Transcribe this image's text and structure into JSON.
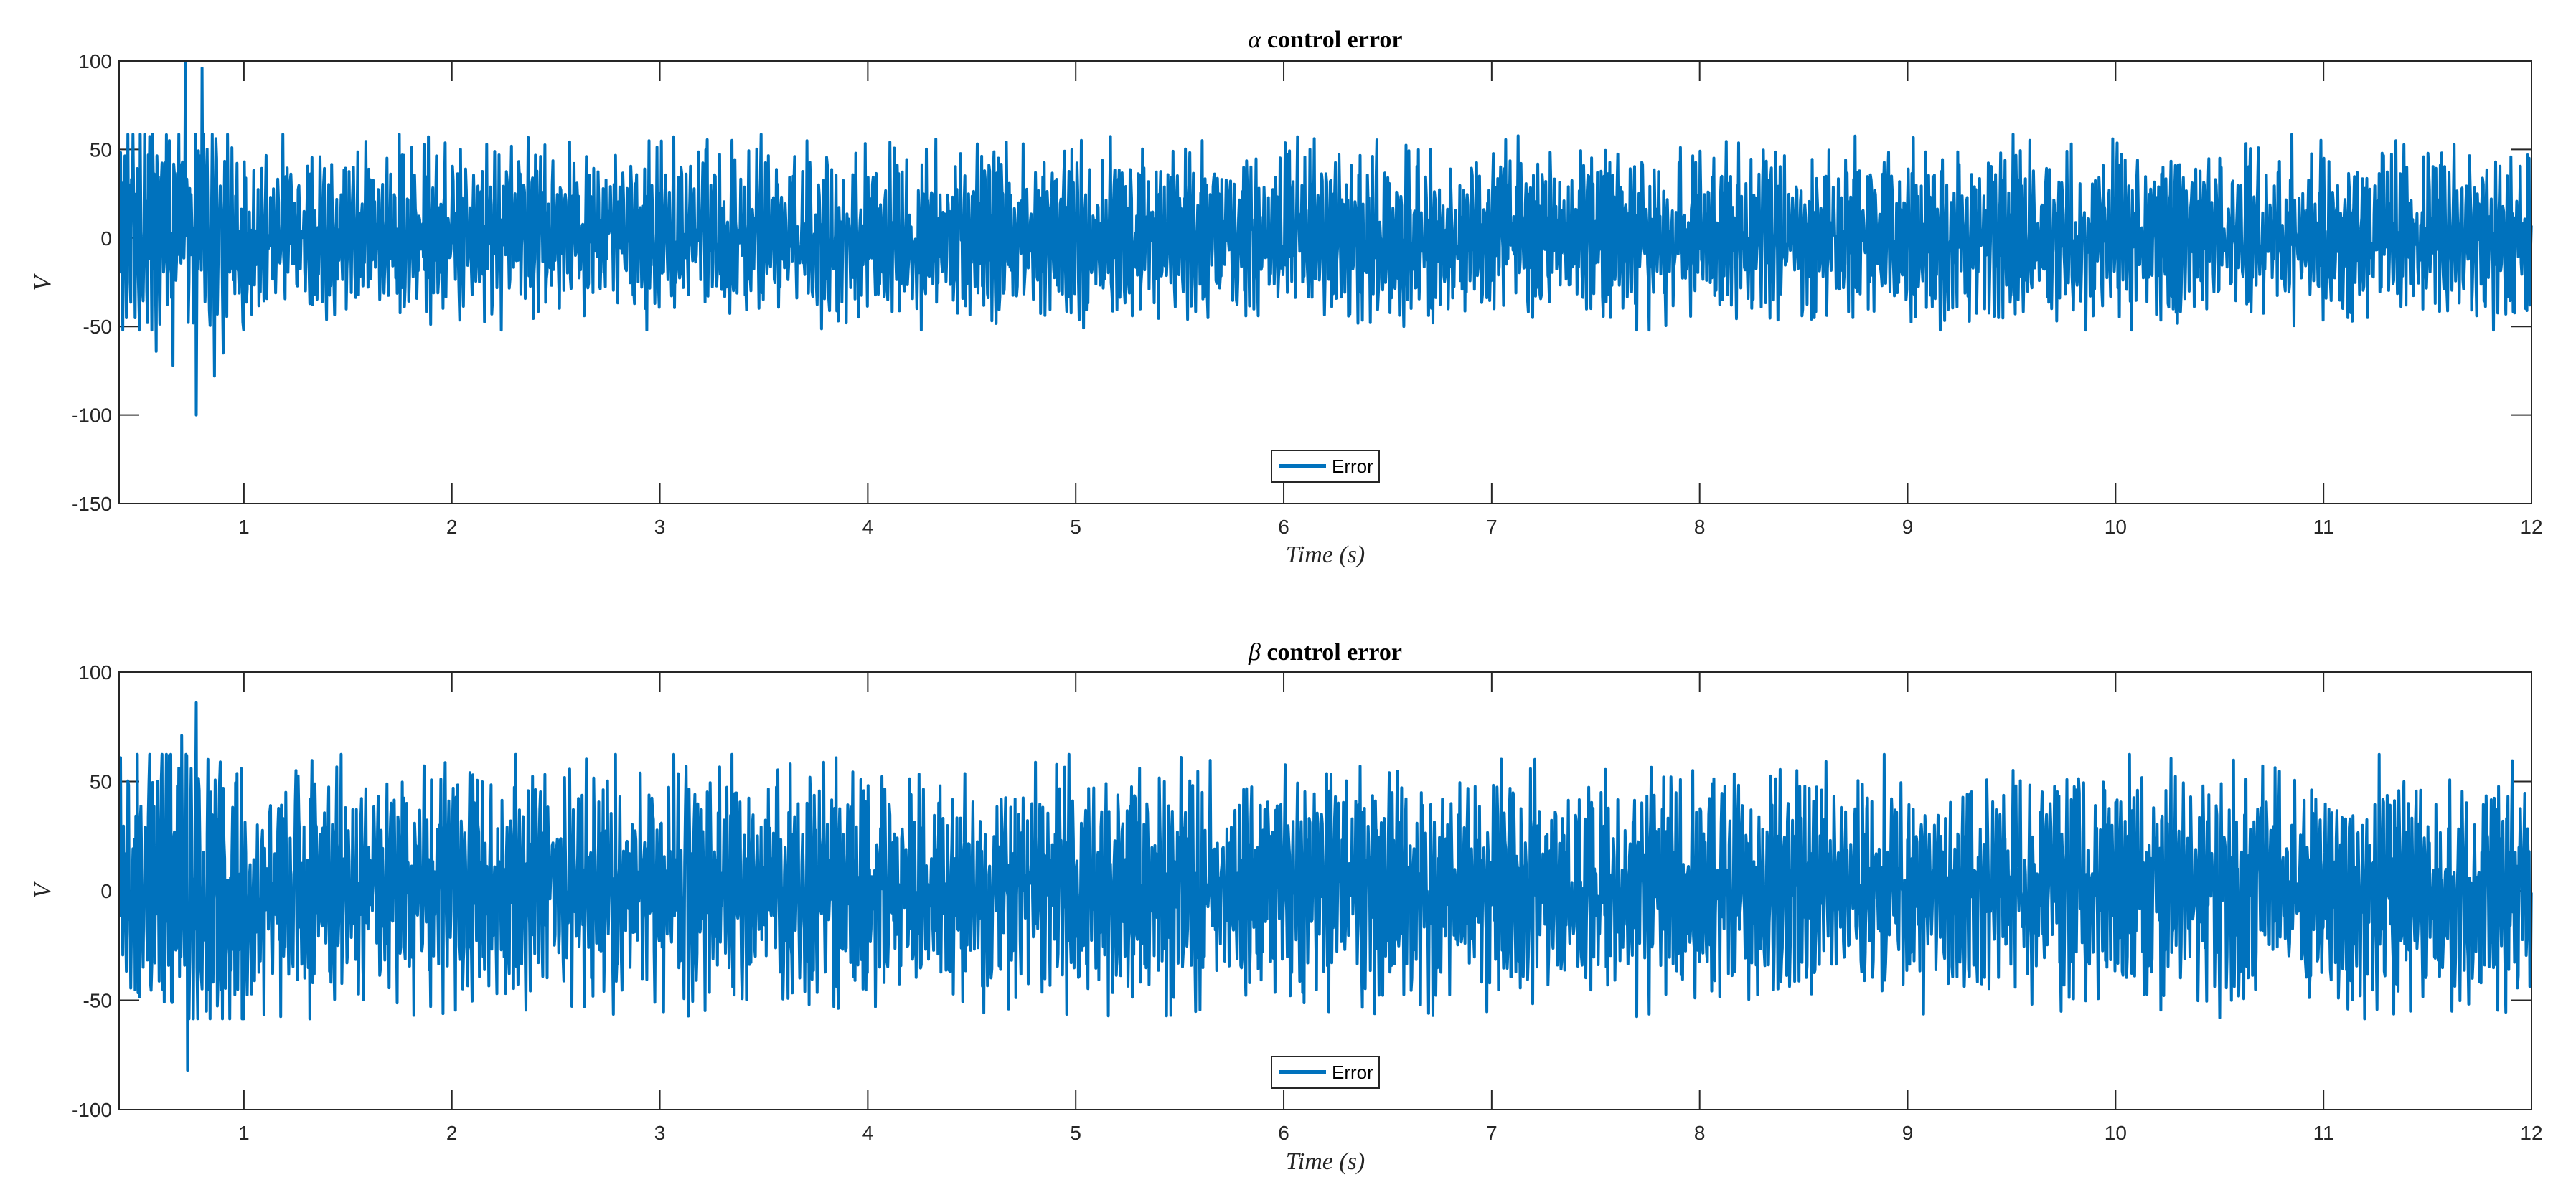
{
  "chart_data": [
    {
      "type": "line",
      "title_symbol": "α",
      "title_text": "control error",
      "xlabel": "Time (s)",
      "ylabel": "V",
      "xlim": [
        0.4,
        12
      ],
      "ylim": [
        -150,
        100
      ],
      "xticks": [
        1,
        2,
        3,
        4,
        5,
        6,
        7,
        8,
        9,
        10,
        11,
        12
      ],
      "yticks": [
        -150,
        -100,
        -50,
        0,
        50,
        100
      ],
      "grid": false,
      "legend_position": "bottom-center",
      "color": "#0072BD",
      "series": [
        {
          "name": "Error",
          "description": "Oscillating error; initial transient to about +100 and -100 near t = 0.7 s, then steady oscillation between roughly -40 and +45",
          "amplitude_upper": 45,
          "amplitude_lower": -40,
          "transient_peaks": [
            {
              "t": 0.72,
              "v": 100
            },
            {
              "t": 0.77,
              "v": -100
            },
            {
              "t": 0.8,
              "v": 96
            },
            {
              "t": 0.86,
              "v": -78
            },
            {
              "t": 0.66,
              "v": -72
            },
            {
              "t": 0.9,
              "v": -65
            },
            {
              "t": 0.58,
              "v": -64
            }
          ]
        }
      ]
    },
    {
      "type": "line",
      "title_symbol": "β",
      "title_text": "control error",
      "xlabel": "Time (s)",
      "ylabel": "V",
      "xlim": [
        0.4,
        12
      ],
      "ylim": [
        -100,
        100
      ],
      "xticks": [
        1,
        2,
        3,
        4,
        5,
        6,
        7,
        8,
        9,
        10,
        11,
        12
      ],
      "yticks": [
        -100,
        -50,
        0,
        50,
        100
      ],
      "grid": false,
      "legend_position": "bottom-center",
      "color": "#0072BD",
      "series": [
        {
          "name": "Error",
          "amplitude_upper": 48,
          "amplitude_lower": -45,
          "transient_peaks": [
            {
              "t": 0.77,
              "v": 86
            },
            {
              "t": 0.73,
              "v": -82
            },
            {
              "t": 0.7,
              "v": 71
            },
            {
              "t": 0.82,
              "v": -55
            },
            {
              "t": 1.25,
              "v": 55
            },
            {
              "t": 10.5,
              "v": -58
            }
          ]
        }
      ]
    }
  ]
}
